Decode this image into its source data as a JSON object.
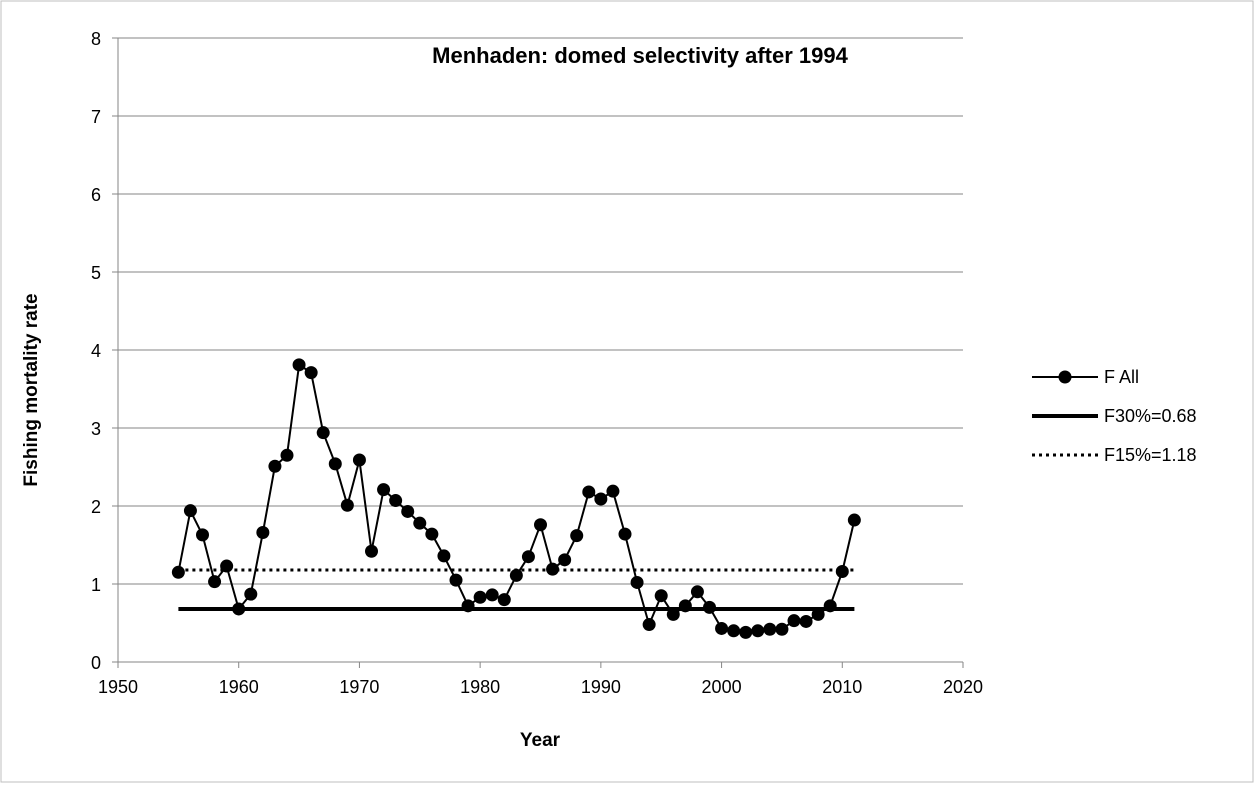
{
  "chart_data": {
    "type": "line",
    "title": "Menhaden: domed selectivity after 1994",
    "xlabel": "Year",
    "ylabel": "Fishing mortality rate",
    "xlim": [
      1950,
      2020
    ],
    "ylim": [
      0,
      8
    ],
    "xticks": [
      1950,
      1960,
      1970,
      1980,
      1990,
      2000,
      2010,
      2020
    ],
    "yticks": [
      0,
      1,
      2,
      3,
      4,
      5,
      6,
      7,
      8
    ],
    "grid": "horizontal",
    "legend_position": "right",
    "series": [
      {
        "name": "F All",
        "style": "solid-markers",
        "color": "#000000",
        "x": [
          1955,
          1956,
          1957,
          1958,
          1959,
          1960,
          1961,
          1962,
          1963,
          1964,
          1965,
          1966,
          1967,
          1968,
          1969,
          1970,
          1971,
          1972,
          1973,
          1974,
          1975,
          1976,
          1977,
          1978,
          1979,
          1980,
          1981,
          1982,
          1983,
          1984,
          1985,
          1986,
          1987,
          1988,
          1989,
          1990,
          1991,
          1992,
          1993,
          1994,
          1995,
          1996,
          1997,
          1998,
          1999,
          2000,
          2001,
          2002,
          2003,
          2004,
          2005,
          2006,
          2007,
          2008,
          2009,
          2010,
          2011
        ],
        "values": [
          1.15,
          1.94,
          1.63,
          1.03,
          1.23,
          0.68,
          0.87,
          1.66,
          2.51,
          2.65,
          3.81,
          3.71,
          2.94,
          2.54,
          2.01,
          2.59,
          1.42,
          2.21,
          2.07,
          1.93,
          1.78,
          1.64,
          1.36,
          1.05,
          0.72,
          0.83,
          0.86,
          0.8,
          1.11,
          1.35,
          1.76,
          1.19,
          1.31,
          1.62,
          2.18,
          2.09,
          2.19,
          1.64,
          1.02,
          0.48,
          0.85,
          0.61,
          0.72,
          0.9,
          0.7,
          0.43,
          0.4,
          0.38,
          0.4,
          0.42,
          0.42,
          0.53,
          0.52,
          0.61,
          0.72,
          1.16,
          1.82
        ]
      },
      {
        "name": "F30%=0.68",
        "style": "thick-solid",
        "color": "#000000",
        "x": [
          1955,
          2011
        ],
        "values": [
          0.68,
          0.68
        ]
      },
      {
        "name": "F15%=1.18",
        "style": "dotted",
        "color": "#000000",
        "x": [
          1955,
          2011
        ],
        "values": [
          1.18,
          1.18
        ]
      }
    ]
  }
}
